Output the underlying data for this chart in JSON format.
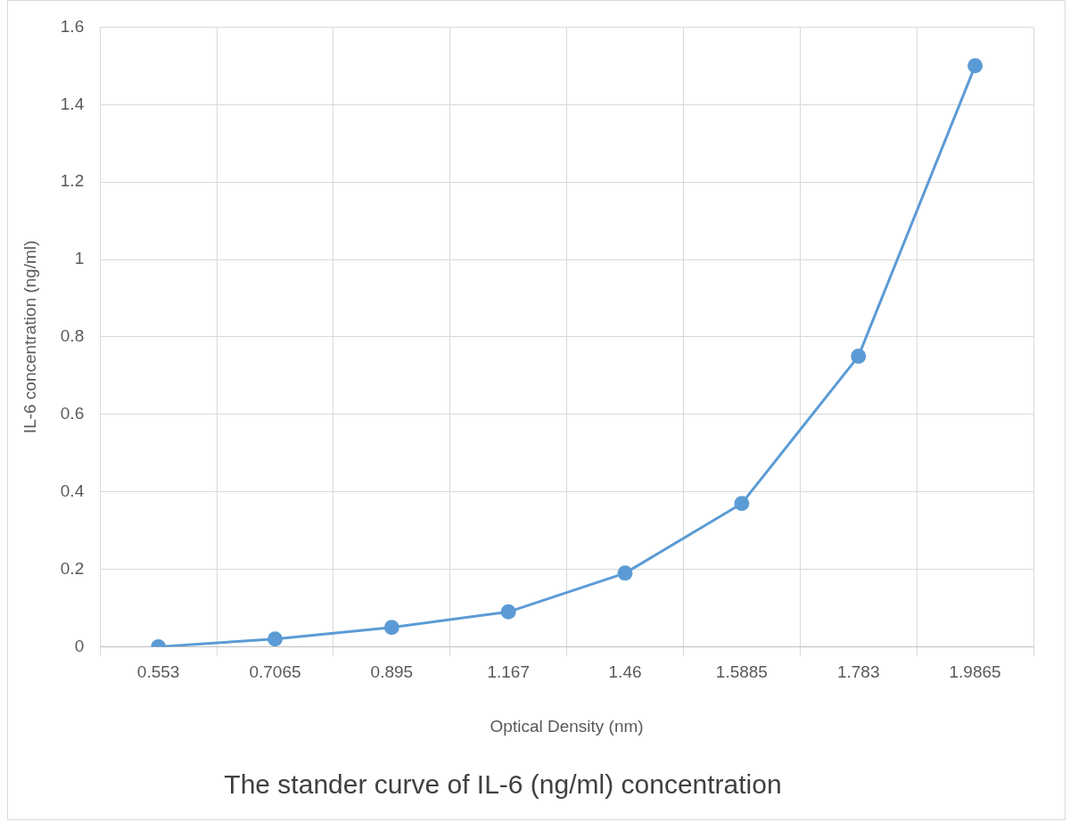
{
  "chart_data": {
    "type": "line",
    "title": "The stander curve of IL-6 (ng/ml) concentration",
    "xlabel": "Optical Density (nm)",
    "ylabel": "IL-6 concentration (ng/ml)",
    "categories": [
      "0.553",
      "0.7065",
      "0.895",
      "1.167",
      "1.46",
      "1.5885",
      "1.783",
      "1.9865"
    ],
    "series": [
      {
        "color": "#5b9bd5",
        "values": [
          0,
          0.02,
          0.05,
          0.09,
          0.19,
          0.37,
          0.75,
          1.5
        ]
      }
    ],
    "ylim": [
      0,
      1.6
    ],
    "yticks": [
      0,
      0.2,
      0.4,
      0.6,
      0.8,
      1,
      1.2,
      1.4,
      1.6
    ],
    "grid": true,
    "legend": false,
    "marker": "circle",
    "line_style": "solid"
  }
}
